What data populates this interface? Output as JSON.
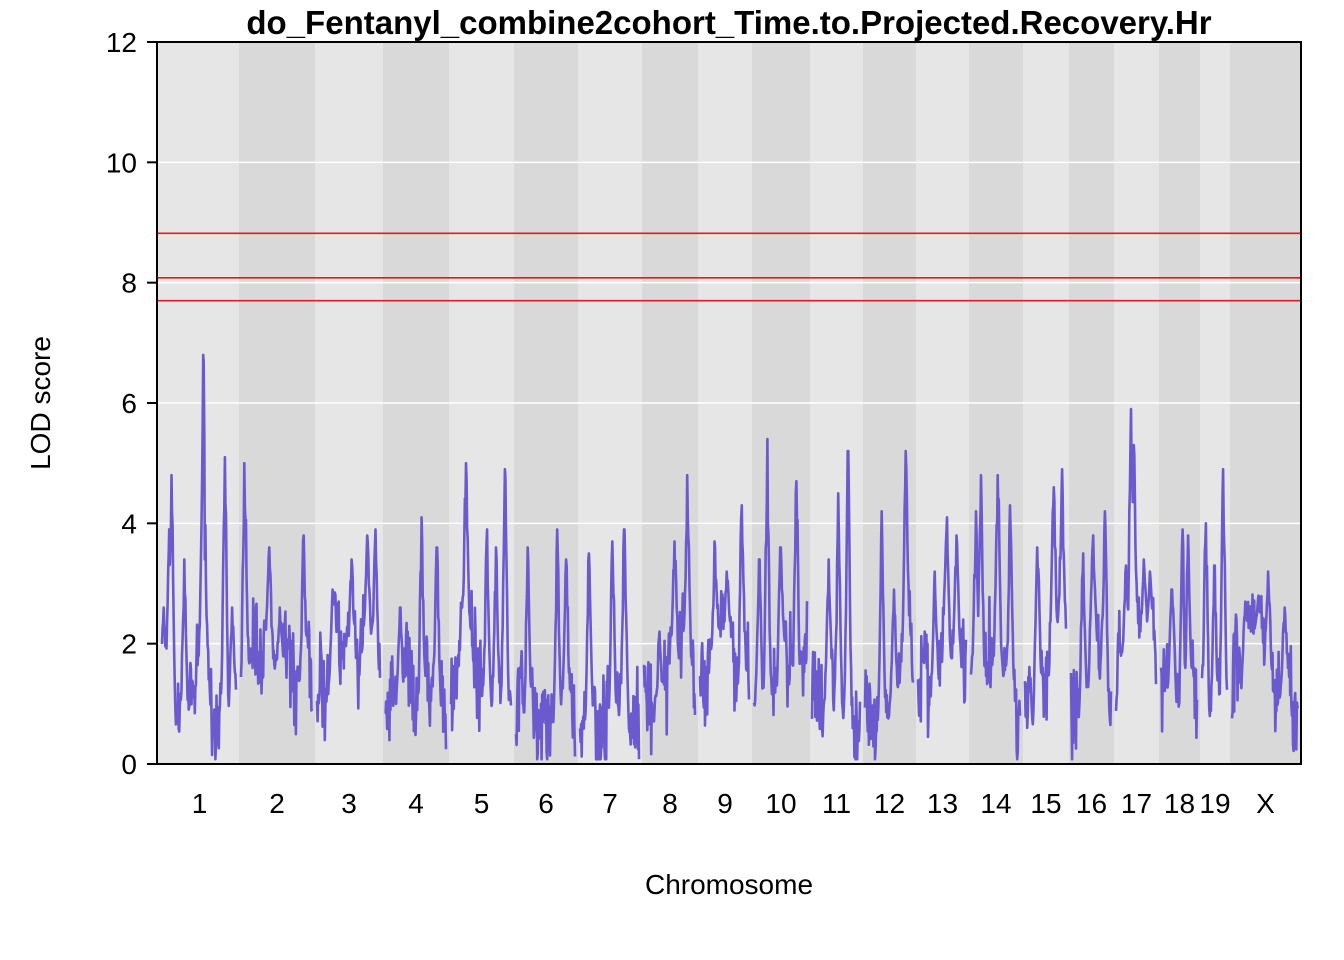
{
  "chart_data": {
    "type": "line",
    "title": "do_Fentanyl_combine2cohort_Time.to.Projected.Recovery.Hr",
    "xlabel": "Chromosome",
    "ylabel": "LOD score",
    "ylim": [
      0,
      12
    ],
    "yticks": [
      "0",
      "2",
      "4",
      "6",
      "8",
      "10",
      "12"
    ],
    "grid": true,
    "line_color": "#6a5acd",
    "threshold_color": "#e41a1c",
    "thresholds": [
      7.7,
      8.08,
      8.82
    ],
    "chromosomes": [
      {
        "name": "1",
        "peaks": [
          [
            0.02,
            2.6
          ],
          [
            0.1,
            3.9
          ],
          [
            0.13,
            4.8
          ],
          [
            0.3,
            3.4
          ],
          [
            0.56,
            6.8
          ],
          [
            0.58,
            3.4
          ],
          [
            0.85,
            5.1
          ],
          [
            0.95,
            2.6
          ]
        ]
      },
      {
        "name": "2",
        "peaks": [
          [
            0.05,
            5.0
          ],
          [
            0.4,
            3.6
          ],
          [
            0.55,
            2.6
          ],
          [
            0.88,
            3.8
          ]
        ]
      },
      {
        "name": "3",
        "peaks": [
          [
            0.25,
            2.9
          ],
          [
            0.55,
            3.4
          ],
          [
            0.8,
            3.8
          ],
          [
            0.93,
            3.9
          ]
        ]
      },
      {
        "name": "4",
        "peaks": [
          [
            0.25,
            2.6
          ],
          [
            0.6,
            4.1
          ],
          [
            0.85,
            3.6
          ]
        ]
      },
      {
        "name": "5",
        "peaks": [
          [
            0.2,
            2.8
          ],
          [
            0.25,
            5.0
          ],
          [
            0.6,
            3.9
          ],
          [
            0.75,
            3.6
          ],
          [
            0.9,
            4.9
          ]
        ]
      },
      {
        "name": "6",
        "peaks": [
          [
            0.2,
            3.6
          ],
          [
            0.7,
            3.9
          ],
          [
            0.85,
            3.4
          ]
        ]
      },
      {
        "name": "7",
        "peaks": [
          [
            0.15,
            3.5
          ],
          [
            0.55,
            3.7
          ],
          [
            0.75,
            3.9
          ]
        ]
      },
      {
        "name": "8",
        "peaks": [
          [
            0.3,
            2.2
          ],
          [
            0.6,
            3.7
          ],
          [
            0.85,
            4.8
          ]
        ]
      },
      {
        "name": "9",
        "peaks": [
          [
            0.3,
            3.7
          ],
          [
            0.55,
            3.2
          ],
          [
            0.85,
            4.3
          ]
        ]
      },
      {
        "name": "10",
        "peaks": [
          [
            0.1,
            3.4
          ],
          [
            0.25,
            5.4
          ],
          [
            0.5,
            3.6
          ],
          [
            0.8,
            4.7
          ]
        ]
      },
      {
        "name": "11",
        "peaks": [
          [
            0.35,
            3.4
          ],
          [
            0.55,
            4.5
          ],
          [
            0.75,
            5.2
          ]
        ]
      },
      {
        "name": "12",
        "peaks": [
          [
            0.35,
            4.2
          ],
          [
            0.6,
            2.9
          ],
          [
            0.85,
            5.2
          ]
        ]
      },
      {
        "name": "13",
        "peaks": [
          [
            0.35,
            3.2
          ],
          [
            0.6,
            4.1
          ],
          [
            0.8,
            3.8
          ]
        ]
      },
      {
        "name": "14",
        "peaks": [
          [
            0.1,
            4.2
          ],
          [
            0.2,
            4.8
          ],
          [
            0.55,
            4.8
          ],
          [
            0.8,
            4.3
          ]
        ]
      },
      {
        "name": "15",
        "peaks": [
          [
            0.3,
            3.6
          ],
          [
            0.7,
            4.6
          ],
          [
            0.9,
            4.9
          ]
        ]
      },
      {
        "name": "16",
        "peaks": [
          [
            0.3,
            3.5
          ],
          [
            0.55,
            3.8
          ],
          [
            0.85,
            4.2
          ]
        ]
      },
      {
        "name": "17",
        "peaks": [
          [
            0.25,
            3.3
          ],
          [
            0.38,
            5.9
          ],
          [
            0.45,
            5.3
          ],
          [
            0.7,
            3.4
          ],
          [
            0.85,
            3.2
          ]
        ]
      },
      {
        "name": "18",
        "peaks": [
          [
            0.3,
            2.9
          ],
          [
            0.6,
            3.9
          ],
          [
            0.75,
            3.8
          ]
        ]
      },
      {
        "name": "19",
        "peaks": [
          [
            0.15,
            4.0
          ],
          [
            0.5,
            3.3
          ],
          [
            0.85,
            4.9
          ]
        ]
      },
      {
        "name": "X",
        "peaks": [
          [
            0.2,
            2.7
          ],
          [
            0.4,
            2.8
          ],
          [
            0.55,
            3.2
          ],
          [
            0.8,
            2.6
          ]
        ]
      }
    ]
  }
}
